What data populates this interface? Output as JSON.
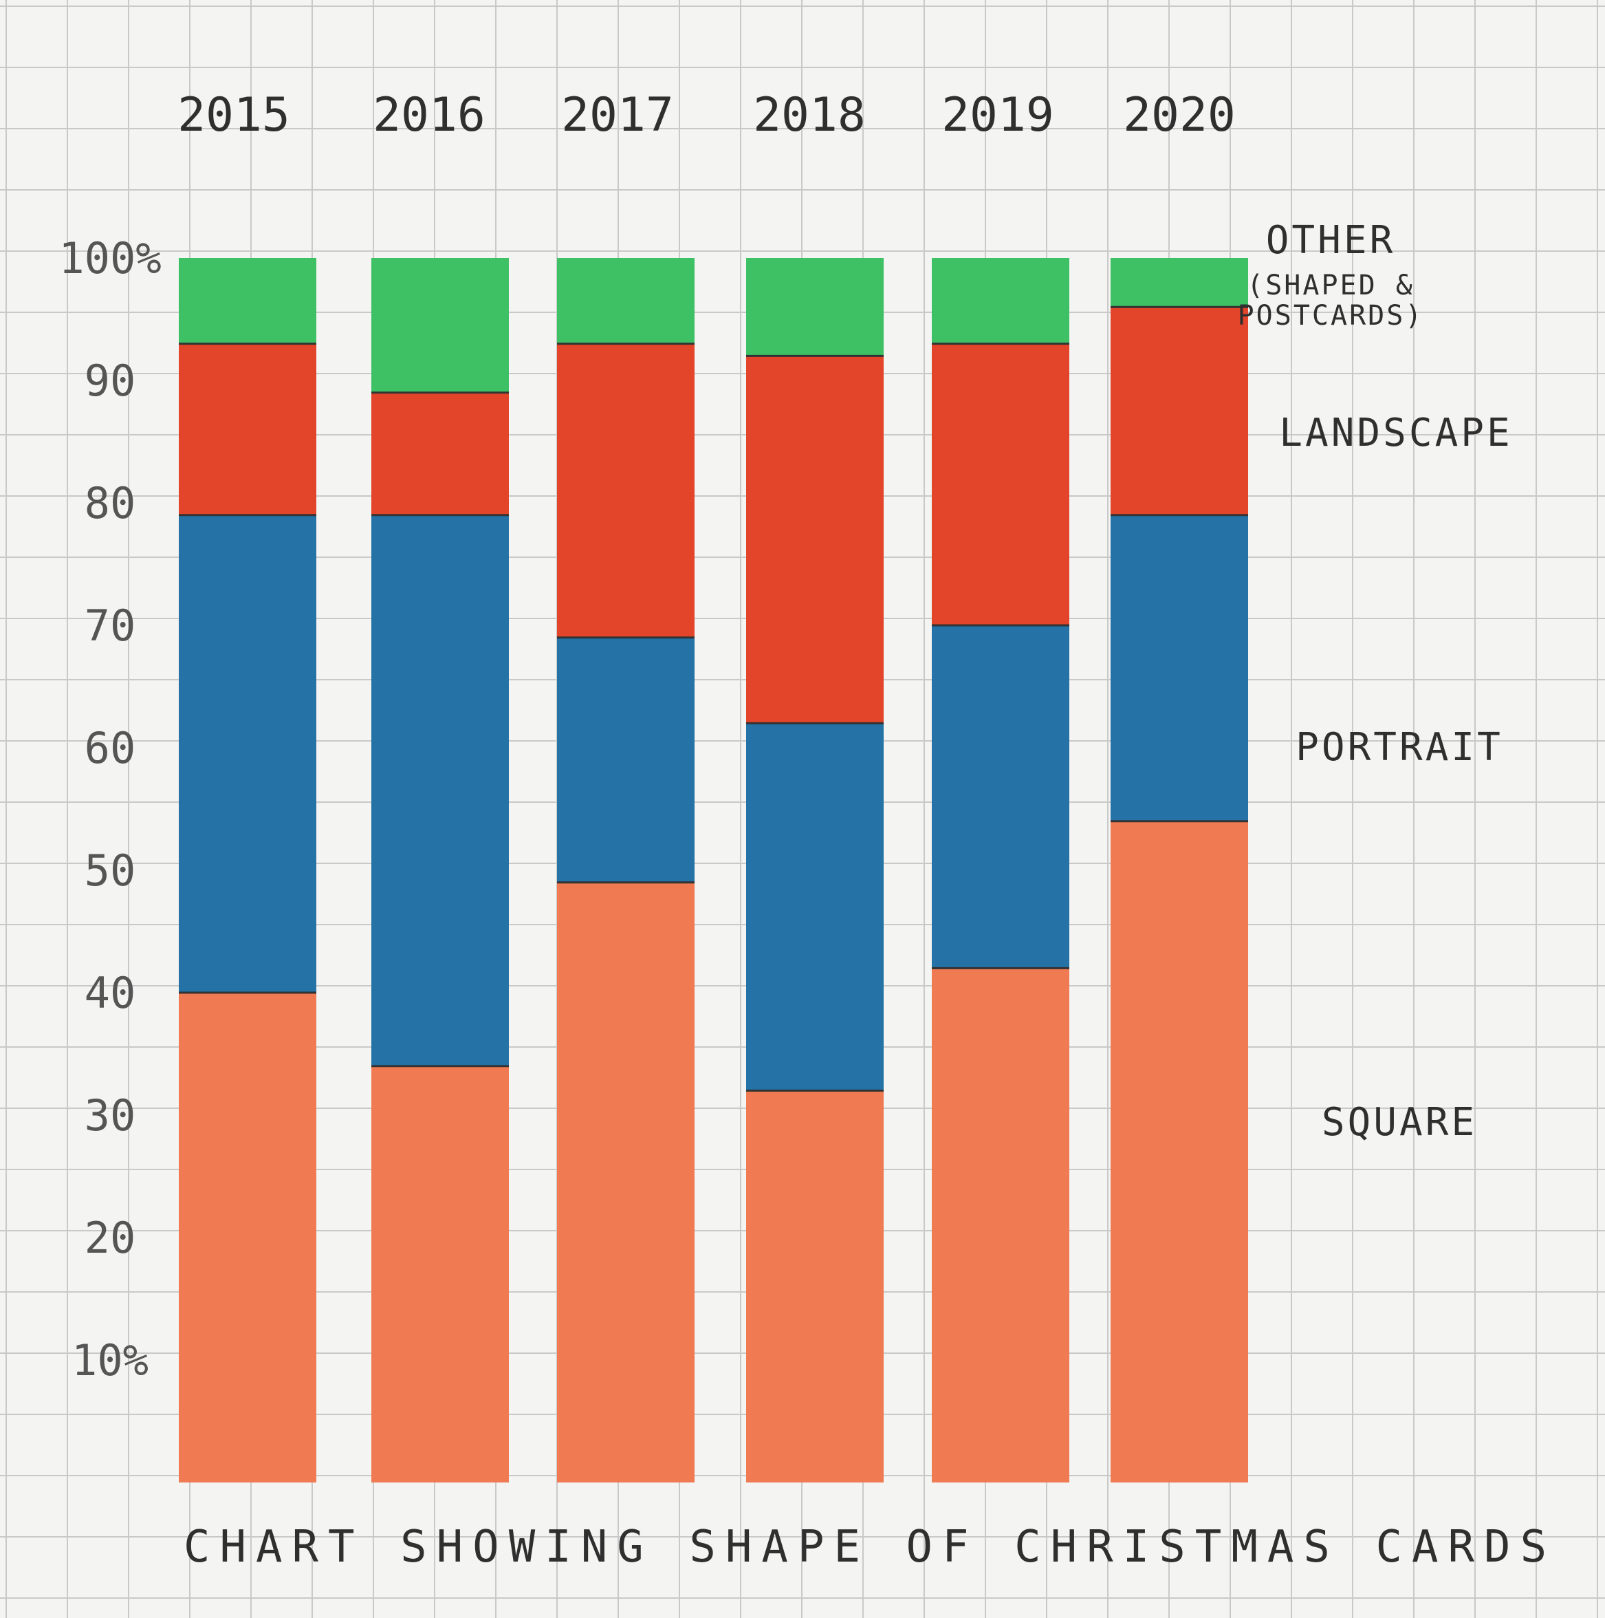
{
  "chart_data": {
    "type": "bar",
    "stacked": true,
    "title": "CHART SHOWING SHAPE OF CHRISTMAS CARDS",
    "categories": [
      "2015",
      "2016",
      "2017",
      "2018",
      "2019",
      "2020"
    ],
    "ylim": [
      0,
      100
    ],
    "y_ticks": [
      "10%",
      "20",
      "30",
      "40",
      "50",
      "60",
      "70",
      "80",
      "90",
      "100%"
    ],
    "grid": true,
    "legend_placement": "right",
    "series": [
      {
        "name": "SQUARE",
        "color": "#f07a52",
        "values": [
          40,
          34,
          49,
          32,
          42,
          54
        ]
      },
      {
        "name": "PORTRAIT",
        "color": "#2472a6",
        "values": [
          39,
          45,
          20,
          30,
          28,
          25
        ]
      },
      {
        "name": "LANDSCAPE",
        "color": "#e2452a",
        "values": [
          14,
          10,
          24,
          30,
          23,
          17
        ]
      },
      {
        "name": "OTHER (SHAPED & POSTCARDS)",
        "color": "#3ec064",
        "values": [
          7,
          11,
          7,
          8,
          7,
          4
        ]
      }
    ],
    "legend": {
      "other": [
        "OTHER",
        "(SHAPED &",
        "POSTCARDS)"
      ],
      "landscape": "LANDSCAPE",
      "portrait": "PORTRAIT",
      "square": "SQUARE"
    }
  }
}
